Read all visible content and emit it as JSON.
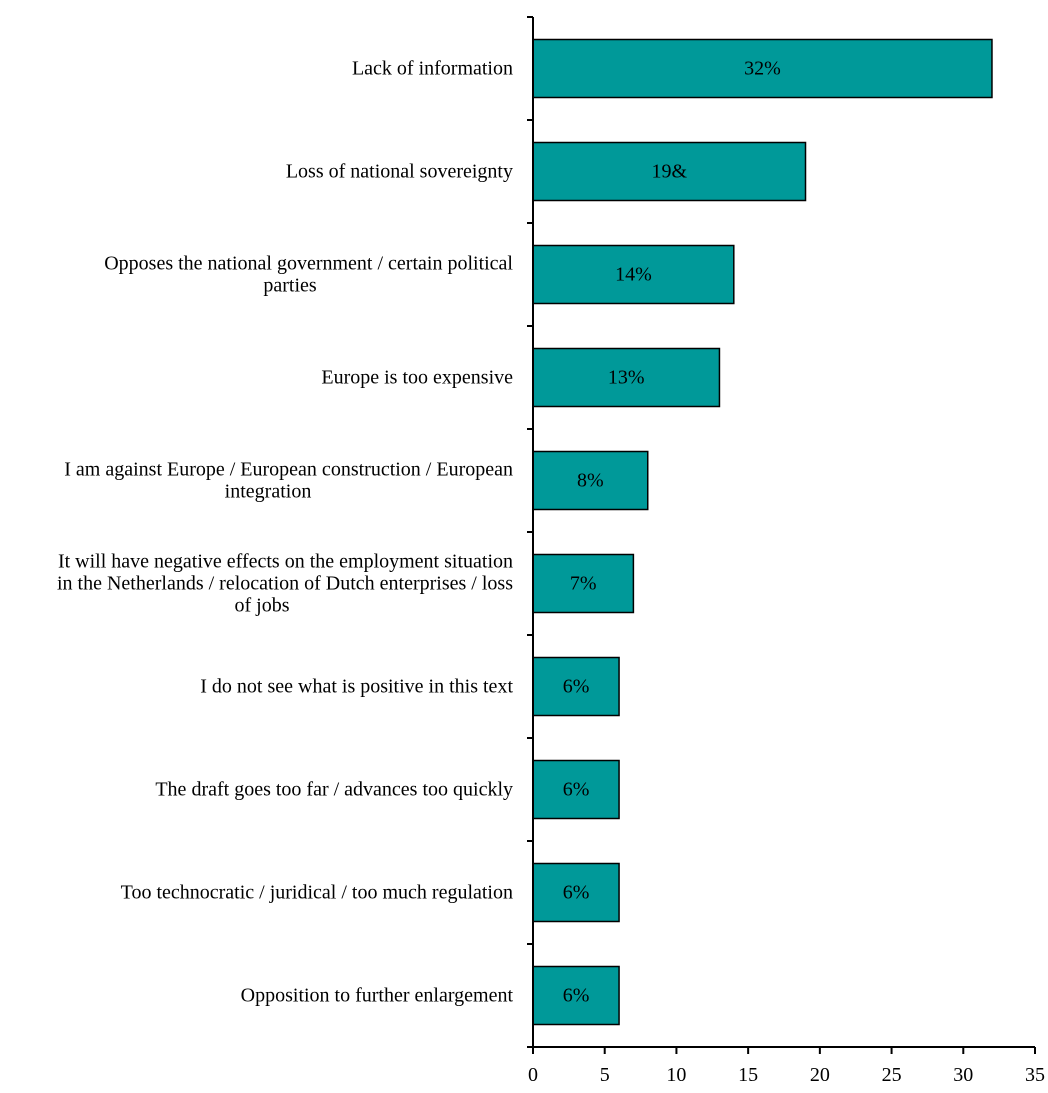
{
  "chart_data": {
    "type": "bar",
    "orientation": "horizontal",
    "title": "",
    "xlabel": "",
    "ylabel": "",
    "xlim": [
      0,
      35
    ],
    "x_ticks": [
      0,
      5,
      10,
      15,
      20,
      25,
      30,
      35
    ],
    "grid": false,
    "bar_color": "#009999",
    "categories": [
      "Lack of information",
      "Loss of national sovereignty",
      "Opposes the national government / certain political parties",
      "Europe is too expensive",
      "I am against Europe / European construction / European integration",
      "It will have negative effects on the employment situation in the Netherlands / relocation of Dutch enterprises / loss of jobs",
      "I do not see what is positive in this text",
      "The draft goes too far / advances too quickly",
      "Too technocratic / juridical / too much regulation",
      "Opposition to further enlargement"
    ],
    "category_lines": [
      [
        "Lack of information"
      ],
      [
        "Loss of national sovereignty"
      ],
      [
        "Opposes the national government / certain political",
        "parties"
      ],
      [
        "Europe is too expensive"
      ],
      [
        "I am against Europe / European construction / European",
        "integration"
      ],
      [
        "It will have negative effects on the employment situation",
        "in the Netherlands / relocation of Dutch enterprises / loss",
        "of jobs"
      ],
      [
        "I do not see what is positive in this text"
      ],
      [
        "The draft goes too far / advances too quickly"
      ],
      [
        "Too technocratic / juridical / too much regulation"
      ],
      [
        "Opposition to further enlargement"
      ]
    ],
    "values": [
      32,
      19,
      14,
      13,
      8,
      7,
      6,
      6,
      6,
      6
    ],
    "data_labels": [
      "32%",
      "19&",
      "14%",
      "13%",
      "8%",
      "7%",
      "6%",
      "6%",
      "6%",
      "6%"
    ]
  }
}
